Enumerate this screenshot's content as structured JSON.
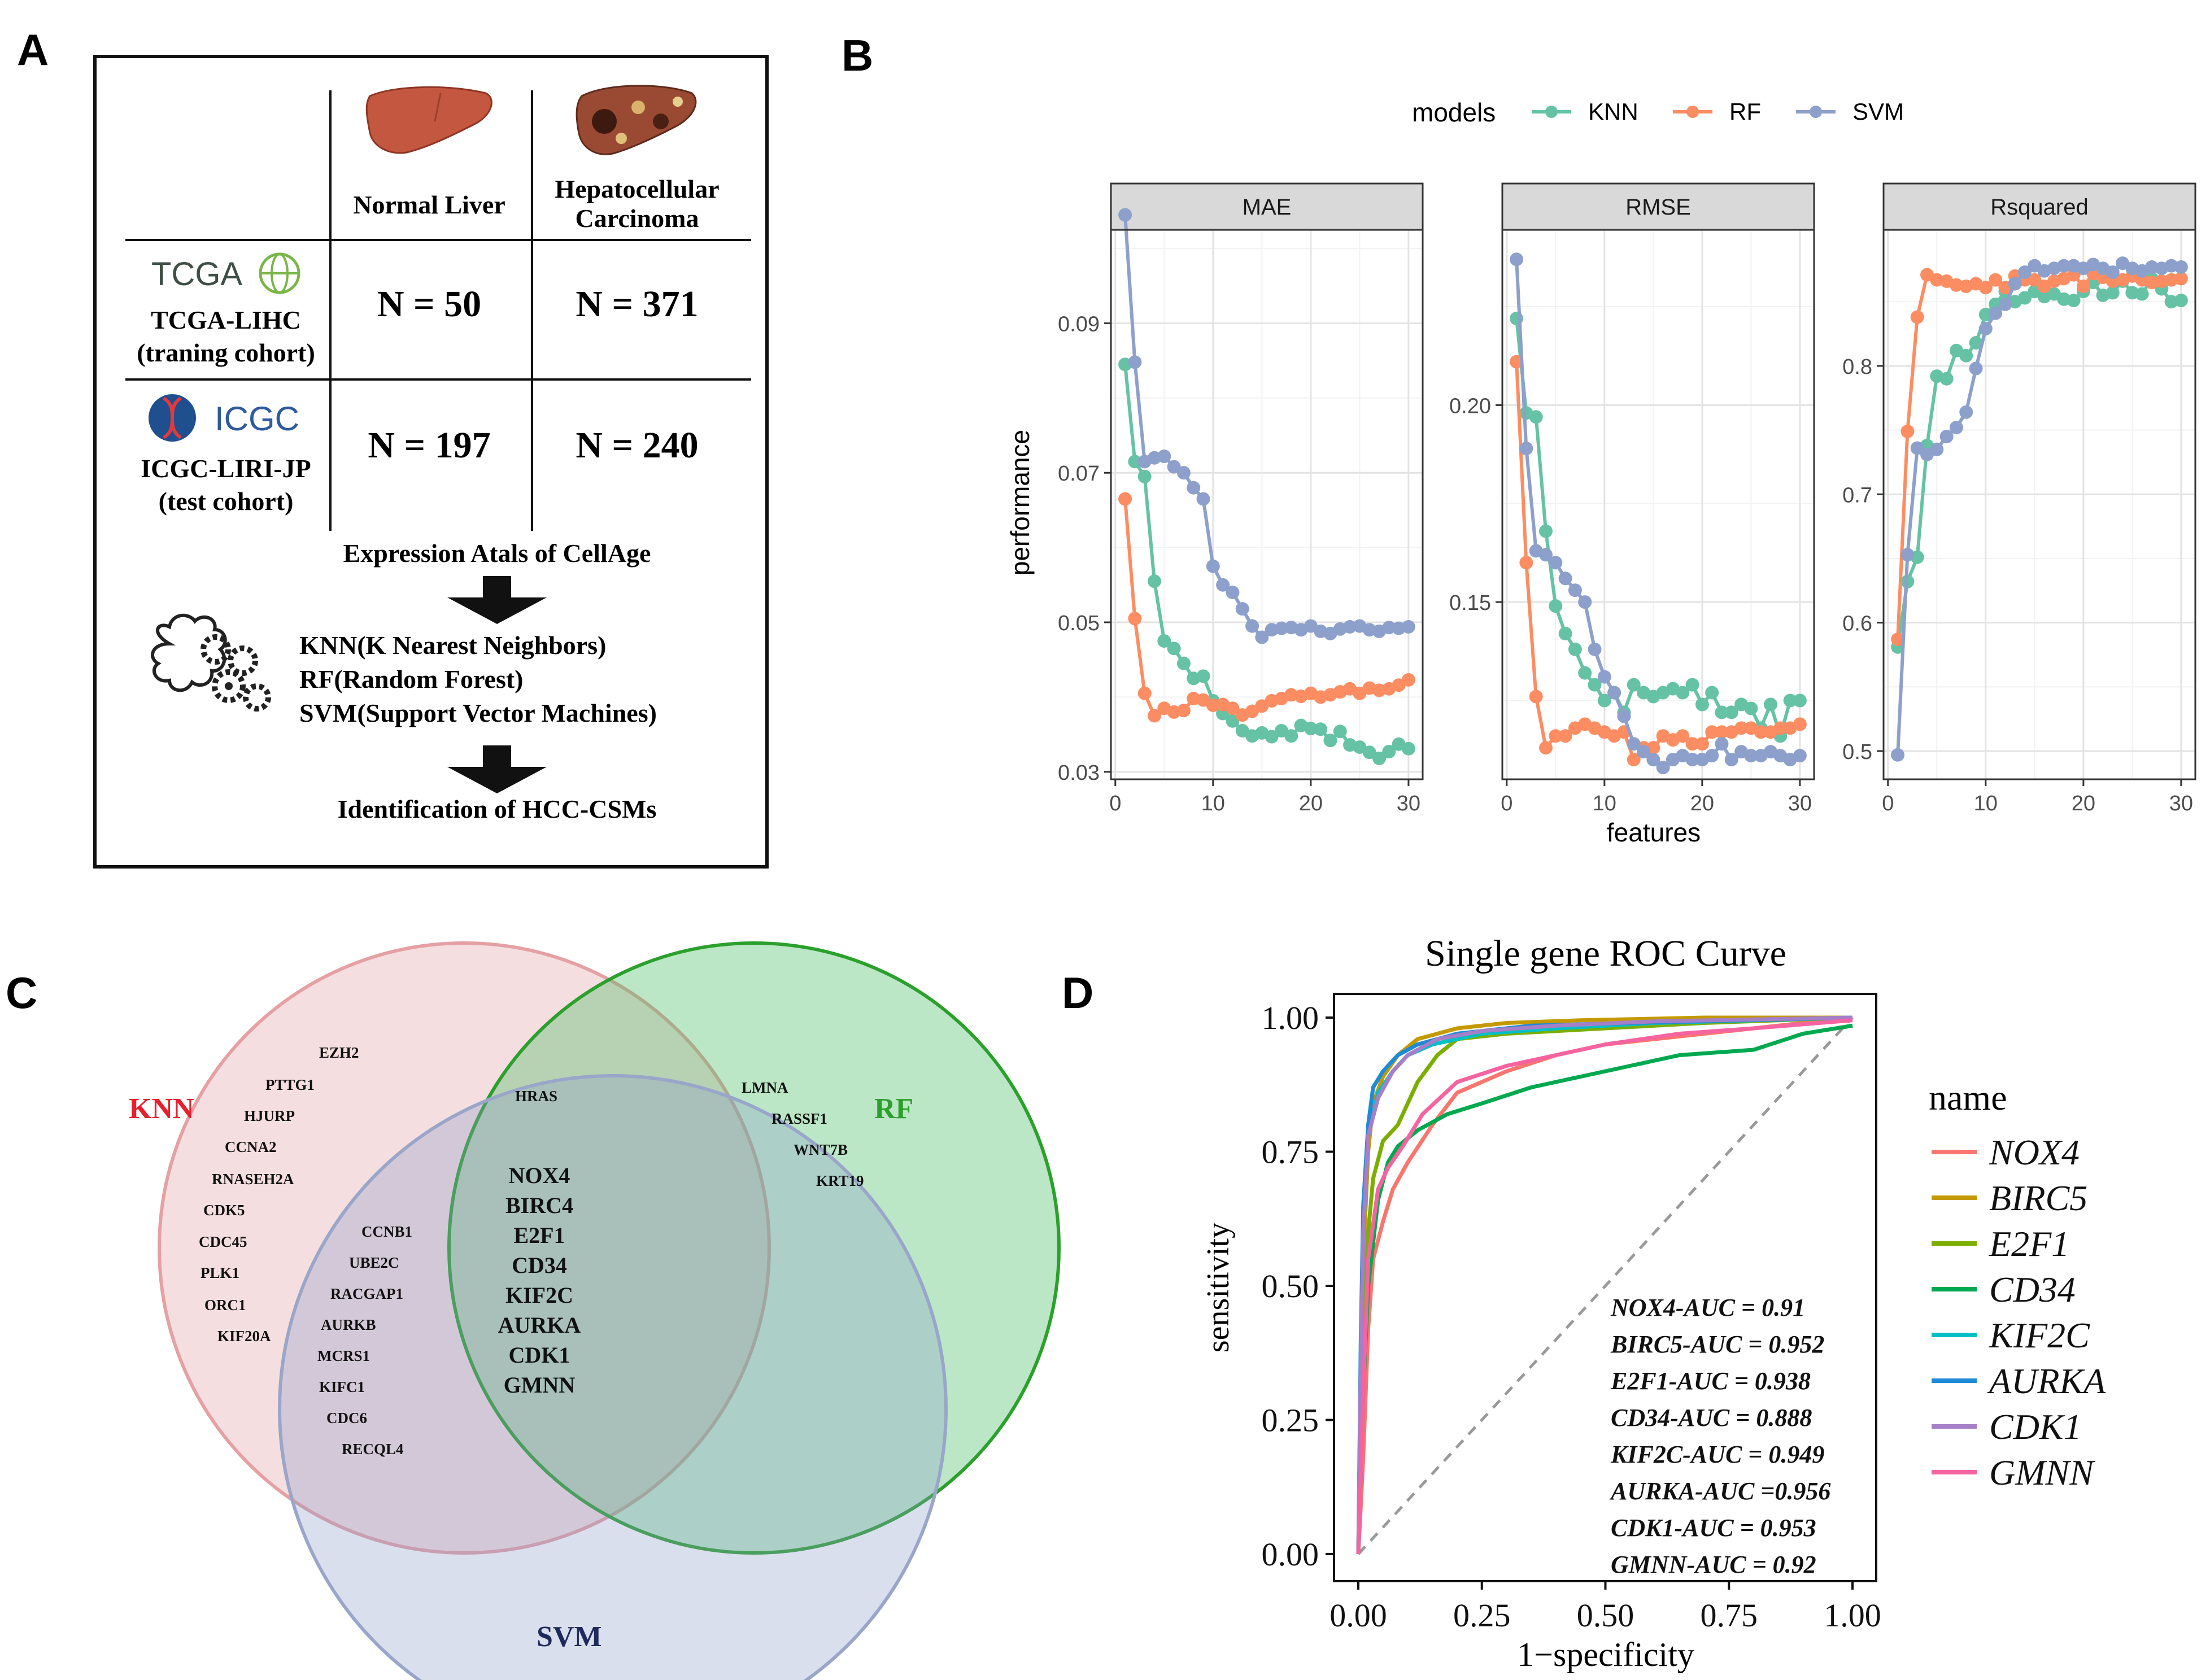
{
  "panel_labels": {
    "a": "A",
    "b": "B",
    "c": "C",
    "d": "D"
  },
  "panel_a": {
    "col_normal": "Normal Liver",
    "col_hcc_1": "Hepatocellular",
    "col_hcc_2": "Carcinoma",
    "tcga_logo": "TCGA",
    "tcga_name": "TCGA-LIHC",
    "tcga_cohort": "(traning cohort)",
    "tcga_normal_n": "N = 50",
    "tcga_hcc_n": "N = 371",
    "icgc_logo": "ICGC",
    "icgc_name": "ICGC-LIRI-JP",
    "icgc_cohort": "(test cohort)",
    "icgc_normal_n": "N = 197",
    "icgc_hcc_n": "N = 240",
    "step1": "Expression Atals of CellAge",
    "methods": [
      "KNN(K Nearest Neighbors)",
      "RF(Random Forest)",
      "SVM(Support Vector Machines)"
    ],
    "step3": "Identification of HCC-CSMs"
  },
  "panel_c": {
    "labels": {
      "knn": "KNN",
      "rf": "RF",
      "svm": "SVM"
    },
    "colors": {
      "knn": "#e6202e",
      "rf": "#2ca02c",
      "svm": "#1f2a5c"
    },
    "knn_only": [
      "EZH2",
      "PTTG1",
      "HJURP",
      "CCNA2",
      "RNASEH2A",
      "CDK5",
      "CDC45",
      "PLK1",
      "ORC1",
      "KIF20A"
    ],
    "knn_rf": [
      "HRAS"
    ],
    "rf_only": [
      "LMNA",
      "RASSF1",
      "WNT7B",
      "KRT19"
    ],
    "knn_svm": [
      "CCNB1",
      "UBE2C",
      "RACGAP1",
      "AURKB",
      "MCRS1",
      "KIFC1",
      "CDC6",
      "RECQL4"
    ],
    "all_three": [
      "NOX4",
      "BIRC4",
      "E2F1",
      "CD34",
      "KIF2C",
      "AURKA",
      "CDK1",
      "GMNN"
    ]
  },
  "chart_data": [
    {
      "type": "line",
      "panel": "B",
      "legend_title": "models",
      "x_label": "features",
      "y_label": "performance",
      "x": [
        1,
        2,
        3,
        4,
        5,
        6,
        7,
        8,
        9,
        10,
        11,
        12,
        13,
        14,
        15,
        16,
        17,
        18,
        19,
        20,
        21,
        22,
        23,
        24,
        25,
        26,
        27,
        28,
        29,
        30
      ],
      "x_ticks": [
        0,
        10,
        20,
        30
      ],
      "series_colors": {
        "KNN": "#66c2a5",
        "RF": "#fc8d62",
        "SVM": "#8da0cb"
      },
      "series_names": [
        "KNN",
        "RF",
        "SVM"
      ],
      "facets": [
        {
          "title": "MAE",
          "ylim": [
            0.029,
            0.1025
          ],
          "y_ticks": [
            0.03,
            0.05,
            0.07,
            0.09
          ],
          "y_tick_labels": [
            "0.03",
            "0.05",
            "0.07",
            "0.09"
          ],
          "series": [
            {
              "name": "KNN",
              "values": [
                0.0845,
                0.0715,
                0.0695,
                0.0555,
                0.0475,
                0.0465,
                0.0445,
                0.0425,
                0.0428,
                0.0395,
                0.0378,
                0.0368,
                0.0355,
                0.0348,
                0.0352,
                0.0347,
                0.0355,
                0.0348,
                0.0362,
                0.0358,
                0.0357,
                0.0342,
                0.0354,
                0.0336,
                0.0333,
                0.0326,
                0.0318,
                0.0327,
                0.0337,
                0.0331
              ]
            },
            {
              "name": "RF",
              "values": [
                0.0665,
                0.0505,
                0.0405,
                0.0375,
                0.0385,
                0.038,
                0.0382,
                0.0398,
                0.0396,
                0.0389,
                0.039,
                0.0385,
                0.0376,
                0.0381,
                0.0388,
                0.0395,
                0.0398,
                0.0403,
                0.0401,
                0.0405,
                0.04,
                0.0403,
                0.0407,
                0.0411,
                0.0405,
                0.0412,
                0.0409,
                0.0411,
                0.0416,
                0.0423
              ]
            },
            {
              "name": "SVM",
              "values": [
                0.1045,
                0.0848,
                0.0715,
                0.072,
                0.0722,
                0.0708,
                0.07,
                0.068,
                0.0665,
                0.0575,
                0.055,
                0.054,
                0.0518,
                0.0495,
                0.048,
                0.049,
                0.0492,
                0.0493,
                0.049,
                0.0495,
                0.0488,
                0.0485,
                0.0491,
                0.0494,
                0.0495,
                0.049,
                0.0488,
                0.0493,
                0.0492,
                0.0494
              ]
            }
          ]
        },
        {
          "title": "RMSE",
          "ylim": [
            0.105,
            0.2445
          ],
          "y_ticks": [
            0.15,
            0.2
          ],
          "y_tick_labels": [
            "0.15",
            "0.20"
          ],
          "series": [
            {
              "name": "KNN",
              "values": [
                0.222,
                0.198,
                0.197,
                0.168,
                0.149,
                0.142,
                0.138,
                0.132,
                0.129,
                0.125,
                0.127,
                0.122,
                0.129,
                0.127,
                0.126,
                0.127,
                0.128,
                0.127,
                0.129,
                0.124,
                0.127,
                0.122,
                0.122,
                0.124,
                0.123,
                0.118,
                0.124,
                0.116,
                0.125,
                0.125
              ]
            },
            {
              "name": "RF",
              "values": [
                0.211,
                0.16,
                0.126,
                0.113,
                0.116,
                0.116,
                0.118,
                0.119,
                0.118,
                0.117,
                0.116,
                0.117,
                0.11,
                0.113,
                0.113,
                0.116,
                0.115,
                0.116,
                0.114,
                0.114,
                0.117,
                0.117,
                0.117,
                0.118,
                0.118,
                0.117,
                0.117,
                0.118,
                0.118,
                0.119
              ]
            },
            {
              "name": "SVM",
              "values": [
                0.237,
                0.189,
                0.163,
                0.162,
                0.16,
                0.156,
                0.153,
                0.15,
                0.138,
                0.131,
                0.127,
                0.121,
                0.114,
                0.112,
                0.11,
                0.108,
                0.11,
                0.111,
                0.11,
                0.11,
                0.111,
                0.114,
                0.11,
                0.112,
                0.111,
                0.111,
                0.112,
                0.111,
                0.11,
                0.111
              ]
            }
          ]
        },
        {
          "title": "Rsquared",
          "ylim": [
            0.478,
            0.906
          ],
          "y_ticks": [
            0.5,
            0.6,
            0.7,
            0.8
          ],
          "y_tick_labels": [
            "0.5",
            "0.6",
            "0.7",
            "0.8"
          ],
          "series": [
            {
              "name": "KNN",
              "values": [
                0.581,
                0.632,
                0.651,
                0.738,
                0.792,
                0.79,
                0.812,
                0.808,
                0.818,
                0.84,
                0.848,
                0.858,
                0.85,
                0.853,
                0.858,
                0.854,
                0.856,
                0.852,
                0.851,
                0.858,
                0.865,
                0.855,
                0.857,
                0.866,
                0.857,
                0.856,
                0.868,
                0.86,
                0.85,
                0.851
              ]
            },
            {
              "name": "RF",
              "values": [
                0.587,
                0.749,
                0.838,
                0.871,
                0.867,
                0.866,
                0.863,
                0.862,
                0.864,
                0.861,
                0.867,
                0.861,
                0.87,
                0.867,
                0.867,
                0.862,
                0.866,
                0.868,
                0.871,
                0.862,
                0.872,
                0.869,
                0.866,
                0.867,
                0.87,
                0.867,
                0.865,
                0.866,
                0.867,
                0.868
              ]
            },
            {
              "name": "SVM",
              "values": [
                0.497,
                0.653,
                0.736,
                0.731,
                0.735,
                0.745,
                0.752,
                0.764,
                0.798,
                0.829,
                0.841,
                0.848,
                0.864,
                0.873,
                0.878,
                0.874,
                0.876,
                0.878,
                0.878,
                0.876,
                0.879,
                0.876,
                0.873,
                0.88,
                0.876,
                0.874,
                0.877,
                0.876,
                0.878,
                0.877
              ]
            }
          ]
        }
      ]
    },
    {
      "type": "line",
      "panel": "D",
      "title": "Single gene ROC Curve",
      "x_label": "1−specificity",
      "y_label": "sensitivity",
      "xlim": [
        0,
        1
      ],
      "ylim": [
        0,
        1
      ],
      "ticks": [
        0,
        0.25,
        0.5,
        0.75,
        1
      ],
      "tick_labels": [
        "0.00",
        "0.25",
        "0.50",
        "0.75",
        "1.00"
      ],
      "legend_title": "name",
      "series": [
        {
          "name": "NOX4",
          "color": "#f8766d",
          "auc_text": "NOX4-AUC = 0.91",
          "points": [
            [
              0,
              0
            ],
            [
              0.01,
              0.18
            ],
            [
              0.02,
              0.42
            ],
            [
              0.03,
              0.55
            ],
            [
              0.05,
              0.62
            ],
            [
              0.07,
              0.68
            ],
            [
              0.1,
              0.73
            ],
            [
              0.15,
              0.8
            ],
            [
              0.2,
              0.86
            ],
            [
              0.3,
              0.9
            ],
            [
              0.4,
              0.93
            ],
            [
              0.5,
              0.95
            ],
            [
              0.6,
              0.96
            ],
            [
              0.7,
              0.97
            ],
            [
              0.8,
              0.98
            ],
            [
              0.9,
              0.99
            ],
            [
              1,
              1
            ]
          ]
        },
        {
          "name": "BIRC5",
          "color": "#c49a00",
          "auc_text": "BIRC5-AUC = 0.952",
          "points": [
            [
              0,
              0
            ],
            [
              0.005,
              0.3
            ],
            [
              0.01,
              0.55
            ],
            [
              0.02,
              0.75
            ],
            [
              0.03,
              0.84
            ],
            [
              0.05,
              0.89
            ],
            [
              0.08,
              0.93
            ],
            [
              0.12,
              0.96
            ],
            [
              0.2,
              0.98
            ],
            [
              0.3,
              0.99
            ],
            [
              0.45,
              0.995
            ],
            [
              0.7,
              1
            ],
            [
              1,
              1
            ]
          ]
        },
        {
          "name": "E2F1",
          "color": "#7cae00",
          "auc_text": "E2F1-AUC = 0.938",
          "points": [
            [
              0,
              0
            ],
            [
              0.01,
              0.4
            ],
            [
              0.02,
              0.6
            ],
            [
              0.03,
              0.7
            ],
            [
              0.05,
              0.77
            ],
            [
              0.08,
              0.8
            ],
            [
              0.12,
              0.88
            ],
            [
              0.16,
              0.93
            ],
            [
              0.2,
              0.96
            ],
            [
              0.3,
              0.97
            ],
            [
              0.5,
              0.98
            ],
            [
              0.7,
              0.99
            ],
            [
              0.85,
              0.995
            ],
            [
              1,
              1
            ]
          ]
        },
        {
          "name": "CD34",
          "color": "#00a94f",
          "auc_text": "CD34-AUC = 0.888",
          "points": [
            [
              0,
              0
            ],
            [
              0.01,
              0.3
            ],
            [
              0.02,
              0.5
            ],
            [
              0.04,
              0.66
            ],
            [
              0.06,
              0.73
            ],
            [
              0.08,
              0.76
            ],
            [
              0.12,
              0.79
            ],
            [
              0.18,
              0.82
            ],
            [
              0.25,
              0.84
            ],
            [
              0.35,
              0.87
            ],
            [
              0.45,
              0.89
            ],
            [
              0.55,
              0.91
            ],
            [
              0.65,
              0.93
            ],
            [
              0.8,
              0.94
            ],
            [
              0.9,
              0.97
            ],
            [
              1,
              0.985
            ]
          ]
        },
        {
          "name": "KIF2C",
          "color": "#00bfc4",
          "auc_text": "KIF2C-AUC = 0.949",
          "points": [
            [
              0,
              0
            ],
            [
              0.005,
              0.35
            ],
            [
              0.01,
              0.6
            ],
            [
              0.02,
              0.78
            ],
            [
              0.04,
              0.86
            ],
            [
              0.07,
              0.9
            ],
            [
              0.1,
              0.93
            ],
            [
              0.15,
              0.95
            ],
            [
              0.25,
              0.97
            ],
            [
              0.4,
              0.98
            ],
            [
              0.6,
              0.99
            ],
            [
              1,
              1
            ]
          ]
        },
        {
          "name": "AURKA",
          "color": "#1f8ad6",
          "auc_text": "AURKA-AUC =0.956",
          "points": [
            [
              0,
              0
            ],
            [
              0.005,
              0.4
            ],
            [
              0.01,
              0.65
            ],
            [
              0.02,
              0.8
            ],
            [
              0.03,
              0.87
            ],
            [
              0.05,
              0.9
            ],
            [
              0.08,
              0.93
            ],
            [
              0.12,
              0.95
            ],
            [
              0.2,
              0.97
            ],
            [
              0.35,
              0.985
            ],
            [
              0.55,
              0.99
            ],
            [
              1,
              1
            ]
          ]
        },
        {
          "name": "CDK1",
          "color": "#a57fc7",
          "auc_text": "CDK1-AUC = 0.953",
          "points": [
            [
              0,
              0
            ],
            [
              0.005,
              0.35
            ],
            [
              0.01,
              0.6
            ],
            [
              0.02,
              0.78
            ],
            [
              0.04,
              0.85
            ],
            [
              0.07,
              0.9
            ],
            [
              0.1,
              0.93
            ],
            [
              0.16,
              0.96
            ],
            [
              0.25,
              0.975
            ],
            [
              0.4,
              0.985
            ],
            [
              0.6,
              0.993
            ],
            [
              1,
              1
            ]
          ]
        },
        {
          "name": "GMNN",
          "color": "#f564a0",
          "auc_text": "GMNN-AUC = 0.92",
          "points": [
            [
              0,
              0
            ],
            [
              0.01,
              0.3
            ],
            [
              0.02,
              0.55
            ],
            [
              0.04,
              0.68
            ],
            [
              0.06,
              0.72
            ],
            [
              0.09,
              0.76
            ],
            [
              0.13,
              0.82
            ],
            [
              0.2,
              0.88
            ],
            [
              0.3,
              0.91
            ],
            [
              0.4,
              0.93
            ],
            [
              0.5,
              0.95
            ],
            [
              0.65,
              0.97
            ],
            [
              0.8,
              0.98
            ],
            [
              1,
              0.995
            ]
          ]
        }
      ]
    }
  ]
}
